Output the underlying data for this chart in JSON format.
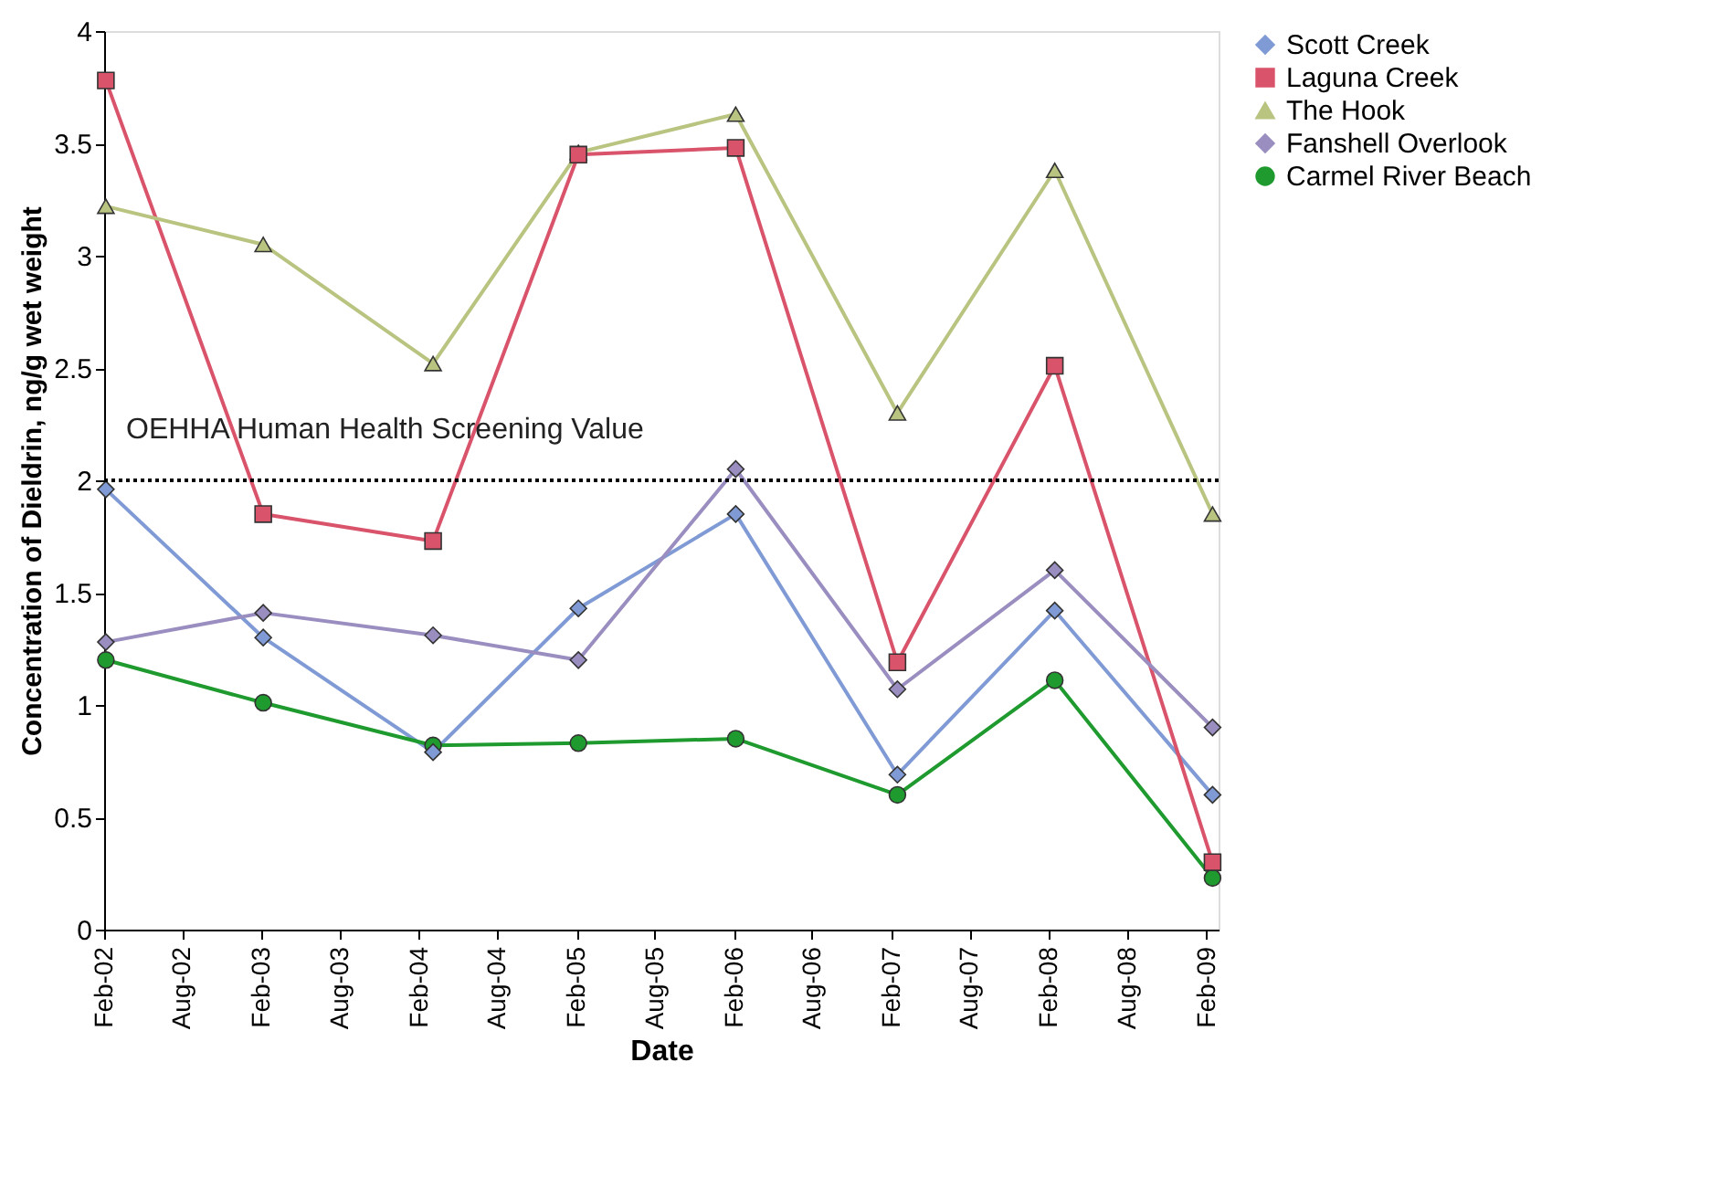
{
  "chart_data": {
    "type": "line",
    "xlabel": "Date",
    "ylabel": "Concentration of Dieldrin, ng/g wet weight",
    "x": [
      "2002-02-05",
      "2003-02-05",
      "2004-03-05",
      "2005-02-05",
      "2006-02-05",
      "2007-02-15",
      "2008-02-15",
      "2009-02-15"
    ],
    "series": [
      {
        "name": "Scott Creek",
        "color": "#7f9ad4",
        "marker": "diamond",
        "values": [
          1.96,
          1.3,
          0.79,
          1.43,
          1.85,
          0.69,
          1.42,
          0.6
        ]
      },
      {
        "name": "Laguna Creek",
        "color": "#d9536b",
        "marker": "square",
        "values": [
          3.78,
          1.85,
          1.73,
          3.45,
          3.48,
          1.19,
          2.51,
          0.3
        ]
      },
      {
        "name": "The Hook",
        "color": "#b8c480",
        "marker": "triangle",
        "values": [
          3.22,
          3.05,
          2.52,
          3.46,
          3.63,
          2.3,
          3.38,
          1.85
        ]
      },
      {
        "name": "Fanshell Overlook",
        "color": "#9a8ec0",
        "marker": "diamond",
        "values": [
          1.28,
          1.41,
          1.31,
          1.2,
          2.05,
          1.07,
          1.6,
          0.9
        ]
      },
      {
        "name": "Carmel River Beach",
        "color": "#1f9a2e",
        "marker": "circle",
        "values": [
          1.2,
          1.01,
          0.82,
          0.83,
          0.85,
          0.6,
          1.11,
          0.23
        ]
      }
    ],
    "ref_lines": [
      {
        "axis": "y",
        "value": 2,
        "label": "OEHHA Human Health Screening Value",
        "color": "#000000",
        "line_style": "dotted"
      }
    ],
    "xlim": [
      "2002-02-01",
      "2009-03-01"
    ],
    "xticks": [
      {
        "value": "2002-02-01",
        "label": "Feb-02"
      },
      {
        "value": "2002-08-01",
        "label": "Aug-02"
      },
      {
        "value": "2003-02-01",
        "label": "Feb-03"
      },
      {
        "value": "2003-08-01",
        "label": "Aug-03"
      },
      {
        "value": "2004-02-01",
        "label": "Feb-04"
      },
      {
        "value": "2004-08-01",
        "label": "Aug-04"
      },
      {
        "value": "2005-02-01",
        "label": "Feb-05"
      },
      {
        "value": "2005-08-01",
        "label": "Aug-05"
      },
      {
        "value": "2006-02-01",
        "label": "Feb-06"
      },
      {
        "value": "2006-08-01",
        "label": "Aug-06"
      },
      {
        "value": "2007-02-01",
        "label": "Feb-07"
      },
      {
        "value": "2007-08-01",
        "label": "Aug-07"
      },
      {
        "value": "2008-02-01",
        "label": "Feb-08"
      },
      {
        "value": "2008-08-01",
        "label": "Aug-08"
      },
      {
        "value": "2009-02-01",
        "label": "Feb-09"
      }
    ],
    "ylim": [
      0,
      4
    ],
    "yticks": [
      0,
      0.5,
      1,
      1.5,
      2,
      2.5,
      3,
      3.5,
      4
    ],
    "grid": false,
    "legend": "right",
    "line_style": "solid"
  }
}
